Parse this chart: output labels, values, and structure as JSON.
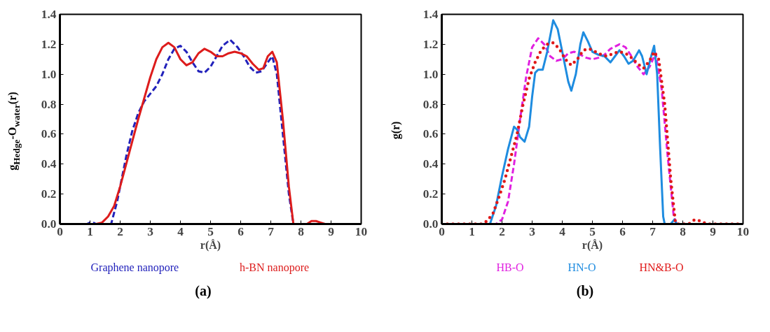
{
  "chart_data": [
    {
      "type": "line",
      "xlabel": "r(Å)",
      "ylabel": "g$_{Hedge}$-O$_{water}$(r)",
      "annotations": [
        "(a)"
      ],
      "xlim": [
        0,
        10
      ],
      "ylim": [
        0,
        1.4
      ],
      "xticks": [
        0,
        1,
        2,
        3,
        4,
        5,
        6,
        7,
        8,
        9,
        10
      ],
      "yticks": [
        {
          "value": 0,
          "label": "0.0"
        },
        {
          "value": 0.2,
          "label": "0.2"
        },
        {
          "value": 0.4,
          "label": "0.4"
        },
        {
          "value": 0.6,
          "label": "0.6"
        },
        {
          "value": 0.8,
          "label": "0.8"
        },
        {
          "value": 1.0,
          "label": "1.0"
        },
        {
          "value": 1.2,
          "label": "1.2"
        },
        {
          "value": 1.4,
          "label": "1.4"
        }
      ],
      "grid": false,
      "legend": "bottom",
      "marker": "none",
      "series": [
        {
          "name": "Graphene nanopore",
          "color": "#2222bb",
          "line_style": "dashed",
          "x": [
            0,
            0.9,
            1.0,
            1.1,
            1.2,
            1.7,
            1.9,
            2.0,
            2.2,
            2.4,
            2.6,
            2.8,
            3.0,
            3.2,
            3.4,
            3.6,
            3.8,
            4.0,
            4.2,
            4.4,
            4.6,
            4.8,
            5.0,
            5.2,
            5.4,
            5.65,
            5.9,
            6.1,
            6.3,
            6.5,
            6.7,
            6.9,
            7.05,
            7.2,
            7.4,
            7.6,
            7.75,
            10
          ],
          "values": [
            0,
            0,
            0.01,
            0.01,
            0,
            0,
            0.15,
            0.25,
            0.45,
            0.62,
            0.74,
            0.82,
            0.87,
            0.92,
            1.0,
            1.1,
            1.17,
            1.19,
            1.15,
            1.08,
            1.02,
            1.01,
            1.05,
            1.12,
            1.19,
            1.23,
            1.18,
            1.12,
            1.05,
            1.01,
            1.02,
            1.08,
            1.12,
            1.0,
            0.6,
            0.2,
            0,
            0
          ]
        },
        {
          "name": "h-BN nanopore",
          "color": "#dd1c1c",
          "line_style": "solid",
          "x": [
            0,
            1.2,
            1.4,
            1.6,
            1.8,
            2.0,
            2.2,
            2.4,
            2.6,
            2.8,
            3.0,
            3.2,
            3.4,
            3.6,
            3.8,
            4.0,
            4.2,
            4.4,
            4.6,
            4.8,
            5.0,
            5.2,
            5.4,
            5.6,
            5.8,
            6.0,
            6.2,
            6.4,
            6.6,
            6.75,
            6.9,
            7.05,
            7.2,
            7.4,
            7.6,
            7.75,
            8.2,
            8.35,
            8.5,
            8.65,
            8.8,
            10
          ],
          "values": [
            0,
            0,
            0.01,
            0.05,
            0.12,
            0.25,
            0.4,
            0.55,
            0.7,
            0.84,
            0.98,
            1.1,
            1.18,
            1.21,
            1.18,
            1.1,
            1.06,
            1.08,
            1.14,
            1.17,
            1.15,
            1.12,
            1.12,
            1.14,
            1.15,
            1.14,
            1.12,
            1.07,
            1.03,
            1.04,
            1.12,
            1.15,
            1.08,
            0.7,
            0.25,
            0,
            0,
            0.02,
            0.02,
            0.01,
            0,
            0
          ]
        }
      ]
    },
    {
      "type": "line",
      "xlabel": "r(Å)",
      "ylabel": "g(r)",
      "annotations": [
        "(b)"
      ],
      "xlim": [
        0,
        10
      ],
      "ylim": [
        0,
        1.4
      ],
      "xticks": [
        0,
        1,
        2,
        3,
        4,
        5,
        6,
        7,
        8,
        9,
        10
      ],
      "yticks": [
        {
          "value": 0,
          "label": "0.0"
        },
        {
          "value": 0.2,
          "label": "0.2"
        },
        {
          "value": 0.4,
          "label": "0.4"
        },
        {
          "value": 0.6,
          "label": "0.6"
        },
        {
          "value": 0.8,
          "label": "0.8"
        },
        {
          "value": 1.0,
          "label": "1.0"
        },
        {
          "value": 1.2,
          "label": "1.2"
        },
        {
          "value": 1.4,
          "label": "1.4"
        }
      ],
      "grid": false,
      "legend": "bottom",
      "marker": "none",
      "series": [
        {
          "name": "HB-O",
          "color": "#e020e0",
          "line_style": "dashed",
          "x": [
            0,
            1.8,
            2.0,
            2.2,
            2.4,
            2.6,
            2.8,
            3.0,
            3.2,
            3.4,
            3.6,
            3.8,
            4.0,
            4.2,
            4.4,
            4.6,
            4.8,
            5.0,
            5.2,
            5.4,
            5.6,
            5.9,
            6.1,
            6.3,
            6.5,
            6.7,
            6.9,
            7.1,
            7.3,
            7.5,
            7.7,
            7.8,
            10
          ],
          "values": [
            0,
            0,
            0.03,
            0.15,
            0.4,
            0.7,
            0.98,
            1.18,
            1.24,
            1.2,
            1.12,
            1.09,
            1.1,
            1.14,
            1.15,
            1.13,
            1.11,
            1.1,
            1.11,
            1.13,
            1.17,
            1.2,
            1.18,
            1.12,
            1.05,
            1.0,
            1.05,
            1.14,
            0.9,
            0.45,
            0.05,
            0,
            0
          ]
        },
        {
          "name": "HN-O",
          "color": "#1e8ce0",
          "line_style": "solid",
          "x": [
            0,
            1.6,
            1.8,
            2.0,
            2.2,
            2.4,
            2.5,
            2.6,
            2.75,
            2.9,
            3.0,
            3.1,
            3.2,
            3.35,
            3.5,
            3.7,
            3.85,
            4.0,
            4.2,
            4.3,
            4.45,
            4.6,
            4.7,
            4.85,
            5.0,
            5.2,
            5.4,
            5.6,
            5.75,
            5.9,
            6.05,
            6.2,
            6.35,
            6.55,
            6.65,
            6.8,
            6.95,
            7.05,
            7.15,
            7.25,
            7.35,
            7.4,
            7.6,
            7.72,
            7.8,
            10
          ],
          "values": [
            0,
            0,
            0.12,
            0.32,
            0.5,
            0.65,
            0.63,
            0.58,
            0.55,
            0.65,
            0.85,
            1.01,
            1.03,
            1.03,
            1.15,
            1.36,
            1.3,
            1.15,
            0.95,
            0.89,
            1.0,
            1.2,
            1.28,
            1.22,
            1.15,
            1.13,
            1.12,
            1.08,
            1.12,
            1.16,
            1.12,
            1.07,
            1.09,
            1.16,
            1.12,
            1.0,
            1.12,
            1.19,
            1.0,
            0.5,
            0.05,
            0,
            0,
            0.03,
            0,
            0
          ]
        },
        {
          "name": "HN&B-O",
          "color": "#e01818",
          "line_style": "dotted",
          "x": [
            0,
            1.3,
            1.5,
            1.7,
            1.9,
            2.1,
            2.3,
            2.5,
            2.7,
            2.9,
            3.1,
            3.3,
            3.5,
            3.7,
            3.9,
            4.1,
            4.3,
            4.5,
            4.7,
            4.9,
            5.1,
            5.3,
            5.5,
            5.7,
            5.9,
            6.1,
            6.3,
            6.5,
            6.7,
            6.9,
            7.05,
            7.2,
            7.4,
            7.6,
            7.75,
            7.8,
            8.2,
            8.4,
            8.6,
            8.8,
            10
          ],
          "values": [
            0,
            0,
            0.02,
            0.07,
            0.18,
            0.3,
            0.45,
            0.6,
            0.8,
            0.97,
            1.08,
            1.16,
            1.2,
            1.21,
            1.17,
            1.1,
            1.06,
            1.1,
            1.16,
            1.17,
            1.15,
            1.13,
            1.12,
            1.14,
            1.15,
            1.14,
            1.11,
            1.07,
            1.04,
            1.09,
            1.15,
            1.1,
            0.8,
            0.3,
            0.02,
            0,
            0,
            0.03,
            0.02,
            0,
            0
          ]
        }
      ]
    }
  ]
}
